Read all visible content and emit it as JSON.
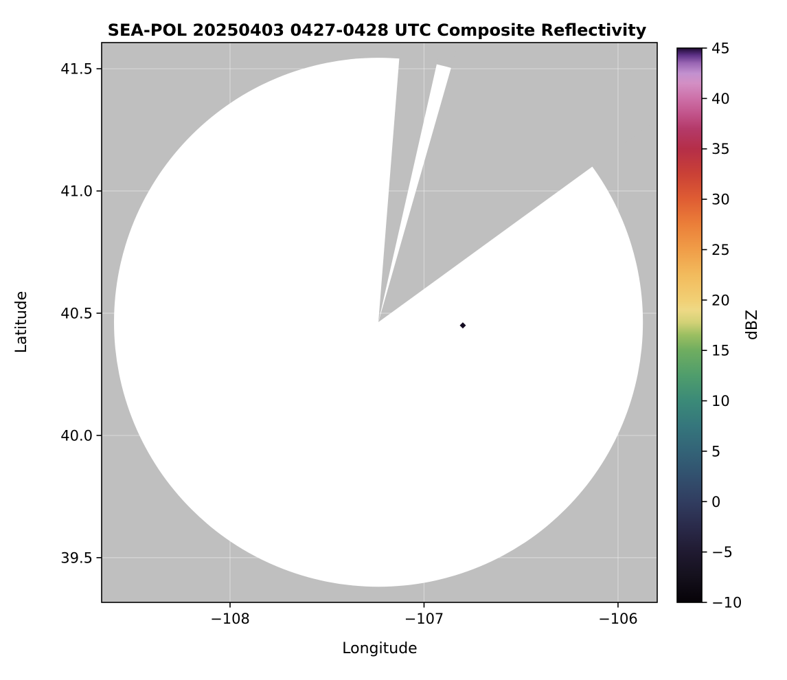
{
  "figure": {
    "title": "SEA-POL 20250403 0427-0428 UTC Composite Reflectivity",
    "xlabel": "Longitude",
    "ylabel": "Latitude",
    "colorbar_label": "dBZ"
  },
  "chart_data": {
    "type": "heatmap",
    "title": "SEA-POL 20250403 0427-0428 UTC Composite Reflectivity",
    "xlabel": "Longitude",
    "ylabel": "Latitude",
    "xlim": [
      -108.662,
      -105.798
    ],
    "ylim": [
      39.317,
      41.607
    ],
    "xticks": [
      -108,
      -107,
      -106
    ],
    "xtick_labels": [
      "−108",
      "−107",
      "−106"
    ],
    "yticks": [
      39.5,
      40.0,
      40.5,
      41.0,
      41.5
    ],
    "ytick_labels": [
      "39.5",
      "40.0",
      "40.5",
      "41.0",
      "41.5"
    ],
    "grid": "faint white gridlines at tick positions",
    "colorbar": {
      "label": "dBZ",
      "min": -10,
      "max": 45,
      "ticks": [
        -10,
        -5,
        0,
        5,
        10,
        15,
        20,
        25,
        30,
        35,
        40,
        45
      ],
      "tick_labels": [
        "−10",
        "−5",
        "0",
        "5",
        "10",
        "15",
        "20",
        "25",
        "30",
        "35",
        "40",
        "45"
      ]
    },
    "radar_coverage": {
      "center_lon": -107.235,
      "center_lat": 40.463,
      "radius_deg_lat": 1.082,
      "fill": "#ffffff",
      "outside_fill": "#bfbfbf",
      "missing_sector_azimuths_deg": [
        [
          4.5,
          12.7
        ],
        [
          16,
          54
        ]
      ]
    },
    "echoes": [
      {
        "lon": -106.8,
        "lat": 40.45,
        "color": "#140c22",
        "shape": "small dark diamond"
      }
    ],
    "colormap_stops": [
      {
        "dbz": -10,
        "color": "#060207"
      },
      {
        "dbz": -7.5,
        "color": "#14101c"
      },
      {
        "dbz": -5,
        "color": "#201a31"
      },
      {
        "dbz": -2.5,
        "color": "#2a2a4a"
      },
      {
        "dbz": 0,
        "color": "#313d60"
      },
      {
        "dbz": 2.5,
        "color": "#32506e"
      },
      {
        "dbz": 5,
        "color": "#336377"
      },
      {
        "dbz": 7.5,
        "color": "#35767c"
      },
      {
        "dbz": 10,
        "color": "#3b8a78"
      },
      {
        "dbz": 12.5,
        "color": "#4f9d6c"
      },
      {
        "dbz": 15,
        "color": "#6fad60"
      },
      {
        "dbz": 16.5,
        "color": "#9abe61"
      },
      {
        "dbz": 17.8,
        "color": "#d3d277"
      },
      {
        "dbz": 19,
        "color": "#eed985"
      },
      {
        "dbz": 20,
        "color": "#f1cf74"
      },
      {
        "dbz": 22.5,
        "color": "#f2bb5d"
      },
      {
        "dbz": 25,
        "color": "#f09d48"
      },
      {
        "dbz": 27.5,
        "color": "#eb7f39"
      },
      {
        "dbz": 30,
        "color": "#df5d33"
      },
      {
        "dbz": 32.5,
        "color": "#ca4136"
      },
      {
        "dbz": 35,
        "color": "#b52e48"
      },
      {
        "dbz": 37,
        "color": "#b43a69"
      },
      {
        "dbz": 38.5,
        "color": "#c2548b"
      },
      {
        "dbz": 40,
        "color": "#cd70a8"
      },
      {
        "dbz": 41.5,
        "color": "#d38fc4"
      },
      {
        "dbz": 42.5,
        "color": "#c291cf"
      },
      {
        "dbz": 43.5,
        "color": "#9a66b4"
      },
      {
        "dbz": 44.3,
        "color": "#5c3186"
      },
      {
        "dbz": 45,
        "color": "#1e0a32"
      }
    ]
  }
}
